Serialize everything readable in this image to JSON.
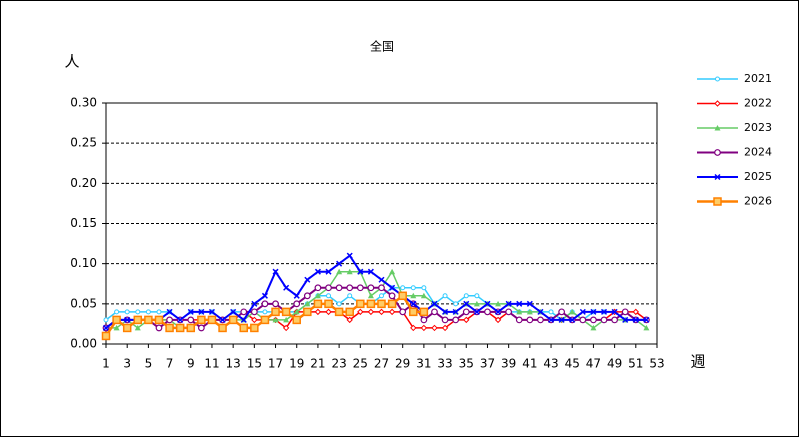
{
  "chart_data": {
    "type": "line",
    "title": "全国",
    "ylabel": "人",
    "xlabel": "週",
    "x": [
      1,
      2,
      3,
      4,
      5,
      6,
      7,
      8,
      9,
      10,
      11,
      12,
      13,
      14,
      15,
      16,
      17,
      18,
      19,
      20,
      21,
      22,
      23,
      24,
      25,
      26,
      27,
      28,
      29,
      30,
      31,
      32,
      33,
      34,
      35,
      36,
      37,
      38,
      39,
      40,
      41,
      42,
      43,
      44,
      45,
      46,
      47,
      48,
      49,
      50,
      51,
      52
    ],
    "xlim": [
      1,
      53
    ],
    "xticks": [
      1,
      3,
      5,
      7,
      9,
      11,
      13,
      15,
      17,
      19,
      21,
      23,
      25,
      27,
      29,
      31,
      33,
      35,
      37,
      39,
      41,
      43,
      45,
      47,
      49,
      51,
      53
    ],
    "ylim": [
      0,
      0.3
    ],
    "yticks": [
      {
        "value": 0,
        "label": "0.00"
      },
      {
        "value": 0.05,
        "label": "0.05"
      },
      {
        "value": 0.1,
        "label": "0.10"
      },
      {
        "value": 0.15,
        "label": "0.15"
      },
      {
        "value": 0.2,
        "label": "0.20"
      },
      {
        "value": 0.25,
        "label": "0.25"
      },
      {
        "value": 0.3,
        "label": "0.30"
      }
    ],
    "grid": true,
    "legend": "right",
    "series": [
      {
        "name": "2021",
        "color": "#33ccff",
        "marker": "circle",
        "values": [
          0.03,
          0.04,
          0.04,
          0.04,
          0.04,
          0.04,
          0.04,
          0.03,
          0.04,
          0.04,
          0.04,
          0.03,
          0.04,
          0.04,
          0.04,
          0.04,
          0.04,
          0.04,
          0.04,
          0.05,
          0.06,
          0.06,
          0.05,
          0.06,
          0.05,
          0.05,
          0.06,
          0.07,
          0.07,
          0.07,
          0.07,
          0.05,
          0.06,
          0.05,
          0.06,
          0.06,
          0.05,
          0.04,
          0.04,
          0.04,
          0.04,
          0.04,
          0.04,
          0.03,
          0.04,
          0.03,
          0.04,
          0.04,
          0.04,
          0.03,
          0.03,
          0.03
        ]
      },
      {
        "name": "2022",
        "color": "#ff0000",
        "marker": "diamond",
        "values": [
          0.02,
          0.03,
          0.03,
          0.03,
          0.03,
          0.03,
          0.03,
          0.03,
          0.03,
          0.03,
          0.03,
          0.03,
          0.03,
          0.04,
          0.03,
          0.03,
          0.03,
          0.02,
          0.04,
          0.04,
          0.04,
          0.04,
          0.04,
          0.03,
          0.04,
          0.04,
          0.04,
          0.04,
          0.04,
          0.02,
          0.02,
          0.02,
          0.02,
          0.03,
          0.03,
          0.04,
          0.04,
          0.03,
          0.04,
          0.03,
          0.03,
          0.03,
          0.03,
          0.03,
          0.03,
          0.03,
          0.03,
          0.03,
          0.04,
          0.04,
          0.04,
          0.03
        ]
      },
      {
        "name": "2023",
        "color": "#66cc66",
        "marker": "triangle",
        "values": [
          0.02,
          0.02,
          0.03,
          0.02,
          0.03,
          0.03,
          0.03,
          0.02,
          0.02,
          0.03,
          0.03,
          0.03,
          0.03,
          0.03,
          0.04,
          0.03,
          0.03,
          0.03,
          0.04,
          0.05,
          0.06,
          0.07,
          0.09,
          0.09,
          0.09,
          0.06,
          0.07,
          0.09,
          0.06,
          0.06,
          0.06,
          0.05,
          0.04,
          0.04,
          0.05,
          0.05,
          0.05,
          0.05,
          0.05,
          0.04,
          0.04,
          0.04,
          0.03,
          0.03,
          0.04,
          0.03,
          0.02,
          0.03,
          0.03,
          0.03,
          0.03,
          0.02
        ]
      },
      {
        "name": "2024",
        "color": "#800080",
        "marker": "ring",
        "values": [
          0.02,
          0.03,
          0.03,
          0.03,
          0.03,
          0.02,
          0.03,
          0.03,
          0.03,
          0.02,
          0.03,
          0.03,
          0.03,
          0.04,
          0.04,
          0.05,
          0.05,
          0.04,
          0.05,
          0.06,
          0.07,
          0.07,
          0.07,
          0.07,
          0.07,
          0.07,
          0.07,
          0.06,
          0.04,
          0.05,
          0.03,
          0.04,
          0.03,
          0.03,
          0.04,
          0.04,
          0.04,
          0.04,
          0.04,
          0.03,
          0.03,
          0.03,
          0.03,
          0.04,
          0.03,
          0.03,
          0.03,
          0.03,
          0.03,
          0.04,
          0.03,
          0.03
        ]
      },
      {
        "name": "2025",
        "color": "#0000ff",
        "marker": "cross",
        "values": [
          0.02,
          0.03,
          0.03,
          0.03,
          0.03,
          0.03,
          0.04,
          0.03,
          0.04,
          0.04,
          0.04,
          0.03,
          0.04,
          0.03,
          0.05,
          0.06,
          0.09,
          0.07,
          0.06,
          0.08,
          0.09,
          0.09,
          0.1,
          0.11,
          0.09,
          0.09,
          0.08,
          0.07,
          0.06,
          0.05,
          0.04,
          0.05,
          0.04,
          0.04,
          0.05,
          0.04,
          0.05,
          0.04,
          0.05,
          0.05,
          0.05,
          0.04,
          0.03,
          0.03,
          0.03,
          0.04,
          0.04,
          0.04,
          0.04,
          0.03,
          0.03,
          0.03
        ]
      },
      {
        "name": "2026",
        "color": "#ff8000",
        "marker": "square",
        "values": [
          0.01,
          0.03,
          0.02,
          0.03,
          0.03,
          0.03,
          0.02,
          0.02,
          0.02,
          0.03,
          0.03,
          0.02,
          0.03,
          0.02,
          0.02,
          0.03,
          0.04,
          0.04,
          0.03,
          0.04,
          0.05,
          0.05,
          0.04,
          0.04,
          0.05,
          0.05,
          0.05,
          0.05,
          0.06,
          0.04,
          0.04,
          null,
          null,
          null,
          null,
          null,
          null,
          null,
          null,
          null,
          null,
          null,
          null,
          null,
          null,
          null,
          null,
          null,
          null,
          null,
          null,
          null
        ]
      }
    ]
  }
}
